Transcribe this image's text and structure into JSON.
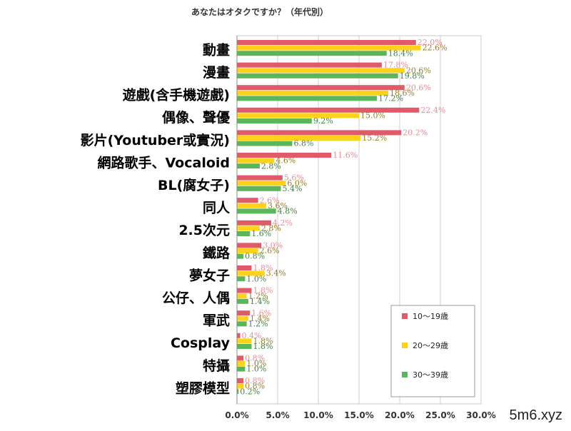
{
  "chart_data": {
    "type": "bar",
    "orientation": "horizontal",
    "title": "あなたはオタクですか？（年代別）",
    "categories": [
      "動畫",
      "漫畫",
      "遊戲(含手機遊戲)",
      "偶像、聲優",
      "影片(Youtuber或實況)",
      "網路歌手、Vocaloid",
      "BL(腐女子)",
      "同人",
      "2.5次元",
      "鐵路",
      "夢女子",
      "公仔、人偶",
      "軍武",
      "Cosplay",
      "特攝",
      "塑膠模型"
    ],
    "series": [
      {
        "name": "10〜19歳",
        "color": "#e05a6a",
        "label_color": "#e88a96",
        "values": [
          22.0,
          17.8,
          20.6,
          22.4,
          20.2,
          11.6,
          5.6,
          2.6,
          4.2,
          3.0,
          1.8,
          1.8,
          1.6,
          0.4,
          0.8,
          0.8
        ]
      },
      {
        "name": "20〜29歳",
        "color": "#ffd21a",
        "label_color": "#9a7a22",
        "values": [
          22.6,
          20.6,
          18.6,
          15.0,
          15.2,
          4.6,
          6.0,
          3.6,
          2.8,
          2.6,
          3.4,
          1.2,
          1.4,
          1.8,
          1.0,
          0.8
        ]
      },
      {
        "name": "30〜39歳",
        "color": "#5bb55a",
        "label_color": "#3f7f3f",
        "values": [
          18.4,
          19.8,
          17.2,
          9.2,
          6.8,
          2.8,
          5.4,
          4.8,
          1.6,
          0.8,
          1.0,
          1.4,
          1.2,
          1.8,
          1.0,
          0.2
        ]
      }
    ],
    "x_ticks": [
      "0.0%",
      "5.0%",
      "10.0%",
      "15.0%",
      "20.0%",
      "25.0%",
      "30.0%"
    ],
    "xlim": [
      0,
      30
    ],
    "grid": true,
    "legend_position": "bottom-right"
  },
  "watermark": "5m6.xyz"
}
